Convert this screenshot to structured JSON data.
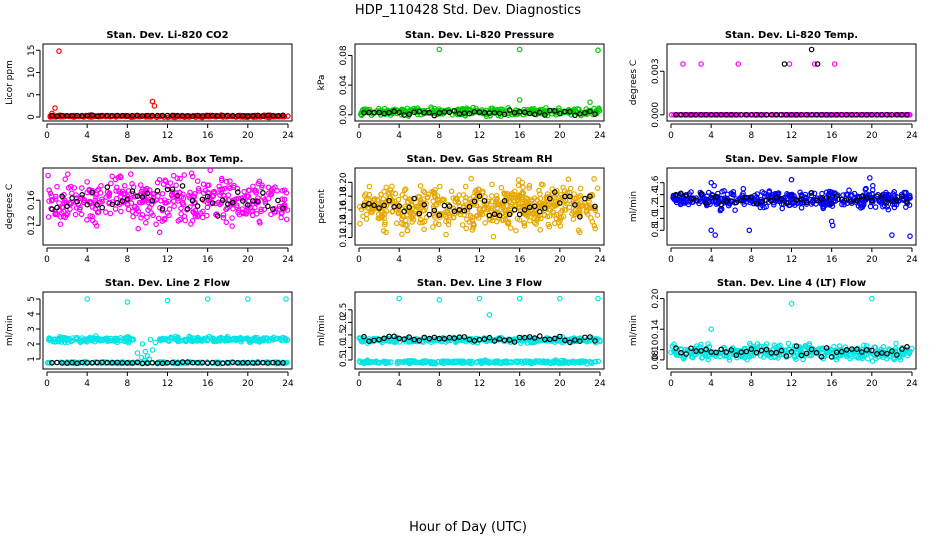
{
  "figure": {
    "title": "HDP_110428  Std. Dev. Diagnostics",
    "xlabel": "Hour of Day (UTC)"
  },
  "chart_data": [
    {
      "type": "scatter",
      "title": "Stan. Dev. Li-820 CO2",
      "ylabel": "Licor ppm",
      "xlim": [
        0,
        24
      ],
      "ylim": [
        0,
        15.5
      ],
      "xticks": [
        0,
        4,
        8,
        12,
        16,
        20,
        24
      ],
      "yticks": [
        0,
        5,
        10,
        15
      ],
      "series": [
        {
          "color": "#ff0000",
          "pattern": "dense",
          "x0": 0,
          "x1": 24,
          "base": 0.15,
          "spread": 0.1,
          "n": 280,
          "outliers": [
            [
              1.2,
              14.8
            ],
            [
              0.8,
              2.0
            ],
            [
              10.5,
              3.5
            ],
            [
              10.7,
              2.5
            ],
            [
              0.5,
              0.8
            ]
          ]
        },
        {
          "color": "#000000",
          "pattern": "hourly",
          "x0": 0.5,
          "x1": 23.5,
          "base": 0.3,
          "spread": 0.05,
          "n": 47
        }
      ]
    },
    {
      "type": "scatter",
      "title": "Stan. Dev. Li-820 Pressure",
      "ylabel": "kPa",
      "xlim": [
        0,
        24
      ],
      "ylim": [
        -0.003,
        0.09
      ],
      "xticks": [
        0,
        4,
        8,
        12,
        16,
        20,
        24
      ],
      "yticks": [
        0.0,
        0.04,
        0.08
      ],
      "ytick_labels": [
        "0.00",
        "0.04",
        "0.08"
      ],
      "series": [
        {
          "color": "#00cc00",
          "pattern": "dense",
          "x0": 0,
          "x1": 24,
          "base": 0.004,
          "spread": 0.0025,
          "n": 300,
          "outliers": [
            [
              8.0,
              0.088
            ],
            [
              16.0,
              0.088
            ],
            [
              23.8,
              0.087
            ],
            [
              16.0,
              0.02
            ],
            [
              23.0,
              0.017
            ]
          ]
        },
        {
          "color": "#000000",
          "pattern": "hourly",
          "x0": 0.5,
          "x1": 23.5,
          "base": 0.003,
          "spread": 0.0015,
          "n": 47
        }
      ]
    },
    {
      "type": "scatter",
      "title": "Stan. Dev. Li-820 Temp.",
      "ylabel": "degrees C",
      "xlim": [
        0,
        24
      ],
      "ylim": [
        -0.00015,
        0.0046
      ],
      "xticks": [
        0,
        4,
        8,
        12,
        16,
        20,
        24
      ],
      "yticks": [
        0.0,
        0.003
      ],
      "ytick_labels": [
        "0.000",
        "0.003"
      ],
      "series": [
        {
          "color": "#ff00ff",
          "pattern": "dense",
          "x0": 0,
          "x1": 24,
          "base": 0.0,
          "spread": 0.0,
          "n": 200,
          "outliers": [
            [
              1.2,
              0.0035
            ],
            [
              3.0,
              0.0035
            ],
            [
              6.7,
              0.0035
            ],
            [
              11.8,
              0.0035
            ],
            [
              14.3,
              0.0035
            ],
            [
              16.3,
              0.0035
            ]
          ]
        },
        {
          "color": "#000000",
          "pattern": "hourly",
          "x0": 0.5,
          "x1": 23.5,
          "base": 0.0,
          "spread": 0.0,
          "n": 47,
          "outliers": [
            [
              11.3,
              0.0035
            ],
            [
              14.0,
              0.0045
            ],
            [
              14.6,
              0.0035
            ]
          ]
        }
      ]
    },
    {
      "type": "scatter",
      "title": "Stan. Dev. Amb. Box Temp.",
      "ylabel": "degrees C",
      "xlim": [
        0,
        24
      ],
      "ylim": [
        0.095,
        0.205
      ],
      "xticks": [
        0,
        4,
        8,
        12,
        16,
        20,
        24
      ],
      "yticks": [
        0.12,
        0.16
      ],
      "ytick_labels": [
        "0.12",
        "0.16"
      ],
      "series": [
        {
          "color": "#ff00ff",
          "pattern": "dense",
          "x0": 0,
          "x1": 24,
          "base": 0.16,
          "spread": 0.018,
          "n": 420
        },
        {
          "color": "#000000",
          "pattern": "hourly",
          "x0": 0.5,
          "x1": 23.5,
          "base": 0.16,
          "spread": 0.01,
          "n": 47
        }
      ]
    },
    {
      "type": "scatter",
      "title": "Stan. Dev. Gas Stream RH",
      "ylabel": "percent",
      "xlim": [
        0,
        24
      ],
      "ylim": [
        0.115,
        0.215
      ],
      "xticks": [
        0,
        4,
        8,
        12,
        16,
        20,
        24
      ],
      "yticks": [
        0.12,
        0.14,
        0.16,
        0.18,
        0.2
      ],
      "ytick_labels": [
        "0.12",
        "0.14",
        "0.16",
        "0.18",
        "0.20"
      ],
      "series": [
        {
          "color": "#e6a800",
          "pattern": "dense",
          "x0": 0,
          "x1": 24,
          "base": 0.165,
          "spread": 0.016,
          "n": 560
        },
        {
          "color": "#000000",
          "pattern": "hourly",
          "x0": 0.5,
          "x1": 23.5,
          "base": 0.167,
          "spread": 0.009,
          "n": 47
        }
      ]
    },
    {
      "type": "scatter",
      "title": "Stan. Dev. Sample Flow",
      "ylabel": "ml/min",
      "xlim": [
        0,
        24
      ],
      "ylim": [
        0.62,
        1.78
      ],
      "xticks": [
        0,
        4,
        8,
        12,
        16,
        20,
        24
      ],
      "yticks": [
        0.8,
        1.0,
        1.2,
        1.4,
        1.6
      ],
      "ytick_labels": [
        "0.8",
        "1.0",
        "1.2",
        "1.4",
        "1.6"
      ],
      "series": [
        {
          "color": "#0000ff",
          "pattern": "dense",
          "x0": 0,
          "x1": 24,
          "base": 1.32,
          "spread": 0.07,
          "n": 420,
          "outliers": [
            [
              4.0,
              1.6
            ],
            [
              4.3,
              1.55
            ],
            [
              4.0,
              0.8
            ],
            [
              4.4,
              0.72
            ],
            [
              7.8,
              0.8
            ],
            [
              12.0,
              1.65
            ],
            [
              16.0,
              0.95
            ],
            [
              16.1,
              0.88
            ],
            [
              19.8,
              1.68
            ],
            [
              20.1,
              1.55
            ],
            [
              22.0,
              0.72
            ],
            [
              23.8,
              0.7
            ]
          ]
        },
        {
          "color": "#000000",
          "pattern": "hourly",
          "x0": 0.5,
          "x1": 23.5,
          "base": 1.33,
          "spread": 0.05,
          "n": 47
        }
      ]
    },
    {
      "type": "scatter",
      "title": "Stan. Dev. Line 2 Flow",
      "ylabel": "ml/min",
      "xlim": [
        0,
        24
      ],
      "ylim": [
        0.6,
        5.2
      ],
      "xticks": [
        0,
        4,
        8,
        12,
        16,
        20,
        24
      ],
      "yticks": [
        1,
        2,
        3,
        4,
        5
      ],
      "series": [
        {
          "color": "#00e5e5",
          "pattern": "dense",
          "x0": 0,
          "x1": 24,
          "base": 2.3,
          "spread": 0.08,
          "n": 320,
          "gap": [
            8.8,
            11.2
          ],
          "outliers": [
            [
              4.0,
              5.0
            ],
            [
              8.0,
              4.8
            ],
            [
              12.0,
              4.9
            ],
            [
              16.0,
              5.0
            ],
            [
              20.0,
              5.0
            ],
            [
              23.8,
              5.0
            ],
            [
              9.5,
              2.0
            ],
            [
              9.8,
              1.5
            ],
            [
              10.0,
              1.2
            ],
            [
              10.2,
              1.0
            ],
            [
              9.4,
              1.1
            ],
            [
              10.5,
              1.6
            ],
            [
              10.8,
              2.1
            ],
            [
              9.0,
              1.4
            ],
            [
              9.7,
              0.9
            ],
            [
              10.3,
              2.3
            ]
          ]
        },
        {
          "color": "#00e5e5",
          "pattern": "dense",
          "x0": 0,
          "x1": 24,
          "base": 0.75,
          "spread": 0.03,
          "n": 200
        },
        {
          "color": "#000000",
          "pattern": "hourly",
          "x0": 0.5,
          "x1": 23.5,
          "base": 0.75,
          "spread": 0.02,
          "n": 47
        }
      ]
    },
    {
      "type": "scatter",
      "title": "Stan. Dev. Line 3 Flow",
      "ylabel": "ml/min",
      "xlim": [
        0,
        24
      ],
      "ylim": [
        0.3,
        3.05
      ],
      "xticks": [
        0,
        4,
        8,
        12,
        16,
        20,
        24
      ],
      "yticks": [
        0.5,
        1.0,
        1.5,
        2.0,
        2.5
      ],
      "ytick_labels": [
        "0.5",
        "1.0",
        "1.5",
        "2.0",
        "2.5"
      ],
      "series": [
        {
          "color": "#00e5e5",
          "pattern": "dense",
          "x0": 0,
          "x1": 24,
          "base": 1.3,
          "spread": 0.05,
          "n": 300,
          "outliers": [
            [
              4.0,
              2.95
            ],
            [
              8.0,
              2.9
            ],
            [
              12.0,
              2.95
            ],
            [
              13.0,
              2.3
            ],
            [
              16.0,
              2.95
            ],
            [
              20.0,
              2.95
            ],
            [
              23.8,
              2.95
            ]
          ]
        },
        {
          "color": "#00e5e5",
          "pattern": "dense",
          "x0": 0,
          "x1": 24,
          "base": 0.42,
          "spread": 0.03,
          "n": 260
        },
        {
          "color": "#000000",
          "pattern": "hourly",
          "x0": 0.5,
          "x1": 23.5,
          "base": 1.35,
          "spread": 0.06,
          "n": 47
        }
      ]
    },
    {
      "type": "scatter",
      "title": "Stan. Dev. Line 4 (LT) Flow",
      "ylabel": "ml/min",
      "xlim": [
        0,
        24
      ],
      "ylim": [
        0.07,
        0.205
      ],
      "xticks": [
        0,
        4,
        8,
        12,
        16,
        20,
        24
      ],
      "yticks": [
        0.08,
        0.1,
        0.14,
        0.2
      ],
      "ytick_labels": [
        "0.08",
        "0.10",
        "0.14",
        "0.20"
      ],
      "series": [
        {
          "color": "#00e5e5",
          "pattern": "dense",
          "x0": 0,
          "x1": 24,
          "base": 0.095,
          "spread": 0.007,
          "n": 380,
          "outliers": [
            [
              4.0,
              0.14
            ],
            [
              12.0,
              0.19
            ],
            [
              20.0,
              0.2
            ]
          ]
        },
        {
          "color": "#000000",
          "pattern": "hourly",
          "x0": 0.5,
          "x1": 23.5,
          "base": 0.095,
          "spread": 0.005,
          "n": 47
        }
      ]
    }
  ]
}
